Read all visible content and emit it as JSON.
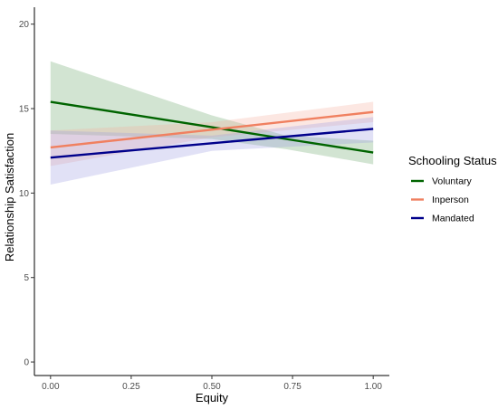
{
  "chart_data": {
    "type": "line",
    "xlabel": "Equity",
    "ylabel": "Relationship Satisfaction",
    "xlim": [
      -0.05,
      1.05
    ],
    "ylim": [
      -0.8,
      21
    ],
    "x_ticks": [
      0,
      0.25,
      0.5,
      0.75,
      1
    ],
    "x_tick_labels": [
      "0.00",
      "0.25",
      "0.50",
      "0.75",
      "1.00"
    ],
    "y_ticks": [
      0,
      5,
      10,
      15,
      20
    ],
    "y_tick_labels": [
      "0",
      "5",
      "10",
      "15",
      "20"
    ],
    "grid": false,
    "legend": {
      "title": "Schooling Status",
      "position": "right"
    },
    "series": [
      {
        "name": "Voluntary",
        "color": "#006400",
        "band_color": "#6aa56a",
        "x": [
          0,
          0.5,
          0.73,
          1
        ],
        "y": [
          15.4,
          13.9,
          13.2,
          12.4
        ],
        "lower": [
          13.5,
          13.2,
          12.6,
          11.7
        ],
        "upper": [
          17.8,
          14.6,
          13.4,
          13.1
        ]
      },
      {
        "name": "Inperson",
        "color": "#f08060",
        "band_color": "#f4b0a0",
        "x": [
          0,
          0.5,
          1
        ],
        "y": [
          12.7,
          13.75,
          14.8
        ],
        "lower": [
          11.6,
          13.3,
          14.2
        ],
        "upper": [
          13.7,
          14.2,
          15.4
        ]
      },
      {
        "name": "Mandated",
        "color": "#00008b",
        "band_color": "#9a9ae0",
        "x": [
          0,
          0.5,
          1
        ],
        "y": [
          12.1,
          12.95,
          13.8
        ],
        "lower": [
          10.5,
          12.5,
          13.0
        ],
        "upper": [
          13.7,
          13.4,
          14.5
        ]
      }
    ]
  }
}
